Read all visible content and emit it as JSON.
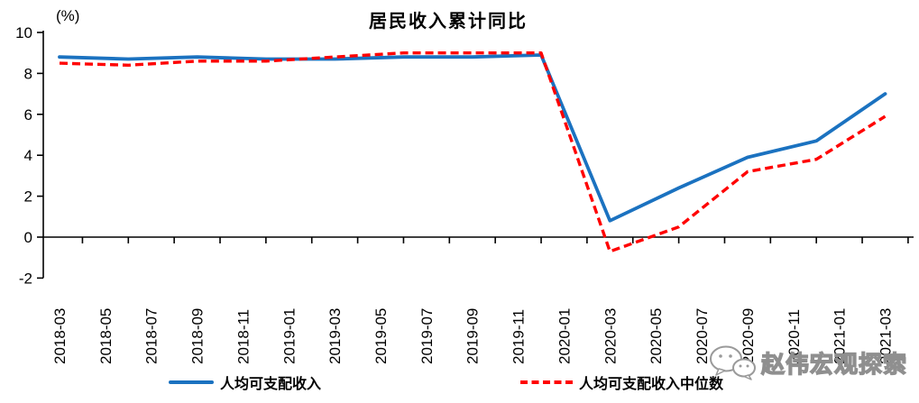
{
  "chart_data": {
    "type": "line",
    "title": "居民收入累计同比",
    "ylabel": "(%)",
    "ylim": [
      -2,
      10
    ],
    "y_ticks": [
      10,
      8,
      6,
      4,
      2,
      0,
      -2
    ],
    "x_tick_labels": [
      "2018-03",
      "2018-05",
      "2018-07",
      "2018-09",
      "2018-11",
      "2019-01",
      "2019-03",
      "2019-05",
      "2019-07",
      "2019-09",
      "2019-11",
      "2020-01",
      "2020-03",
      "2020-05",
      "2020-07",
      "2020-09",
      "2020-11",
      "2021-01",
      "2021-03"
    ],
    "x_points": [
      "2018-03",
      "2018-06",
      "2018-09",
      "2018-12",
      "2019-03",
      "2019-06",
      "2019-09",
      "2019-12",
      "2020-03",
      "2020-06",
      "2020-09",
      "2020-12",
      "2021-03"
    ],
    "series": [
      {
        "name": "人均可支配收入",
        "style": "solid",
        "color": "#1B72C0",
        "values": [
          8.8,
          8.7,
          8.8,
          8.7,
          8.7,
          8.8,
          8.8,
          8.9,
          0.8,
          2.4,
          3.9,
          4.7,
          7.0
        ]
      },
      {
        "name": "人均可支配收入中位数",
        "style": "dashed",
        "color": "#FF0000",
        "values": [
          8.5,
          8.4,
          8.6,
          8.6,
          8.8,
          9.0,
          9.0,
          9.0,
          -0.7,
          0.5,
          3.2,
          3.8,
          5.9
        ]
      }
    ],
    "grid": false,
    "legend_position": "bottom",
    "x_axis_crosses_at": 0,
    "axis_color": "#000000"
  },
  "watermark": {
    "text": "赵伟宏观探索",
    "icon": "wechat-icon"
  }
}
